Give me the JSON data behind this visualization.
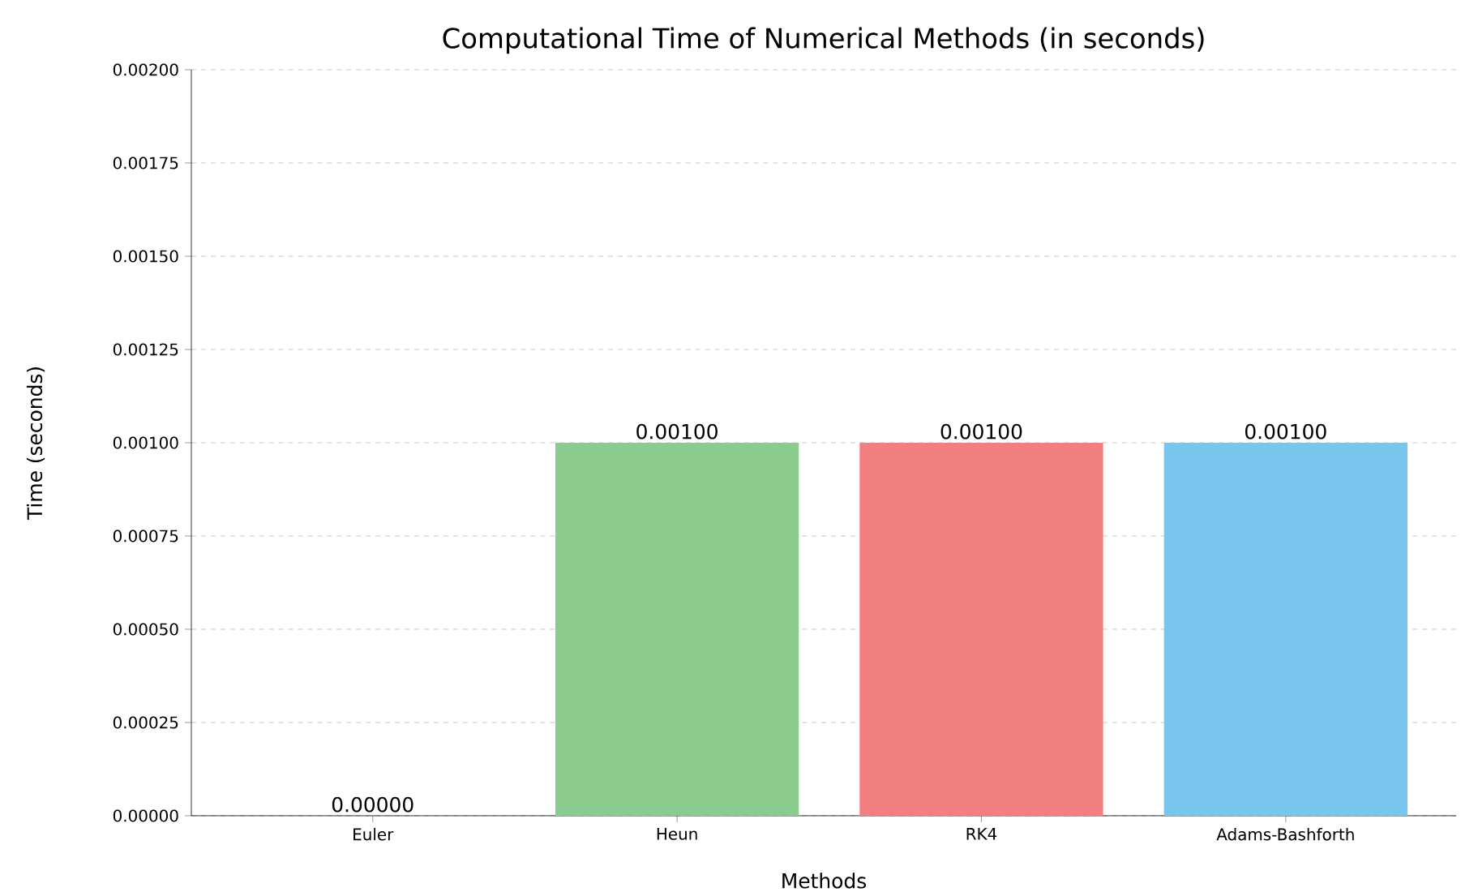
{
  "chart_data": {
    "type": "bar",
    "title": "Computational Time of Numerical Methods (in seconds)",
    "xlabel": "Methods",
    "ylabel": "Time (seconds)",
    "categories": [
      "Euler",
      "Heun",
      "RK4",
      "Adams-Bashforth"
    ],
    "values": [
      0.0,
      0.001,
      0.001,
      0.001
    ],
    "value_labels": [
      "0.00000",
      "0.00100",
      "0.00100",
      "0.00100"
    ],
    "colors": [
      "#f5b041",
      "#8bcb8e",
      "#f28080",
      "#78c6ee"
    ],
    "ylim": [
      0,
      0.002
    ],
    "yticks": [
      {
        "value": 0,
        "label": "0.00000"
      },
      {
        "value": 0.00025,
        "label": "0.00025"
      },
      {
        "value": 0.0005,
        "label": "0.00050"
      },
      {
        "value": 0.00075,
        "label": "0.00075"
      },
      {
        "value": 0.001,
        "label": "0.00100"
      },
      {
        "value": 0.00125,
        "label": "0.00125"
      },
      {
        "value": 0.0015,
        "label": "0.00150"
      },
      {
        "value": 0.00175,
        "label": "0.00175"
      },
      {
        "value": 0.002,
        "label": "0.00200"
      }
    ],
    "grid": "y"
  }
}
